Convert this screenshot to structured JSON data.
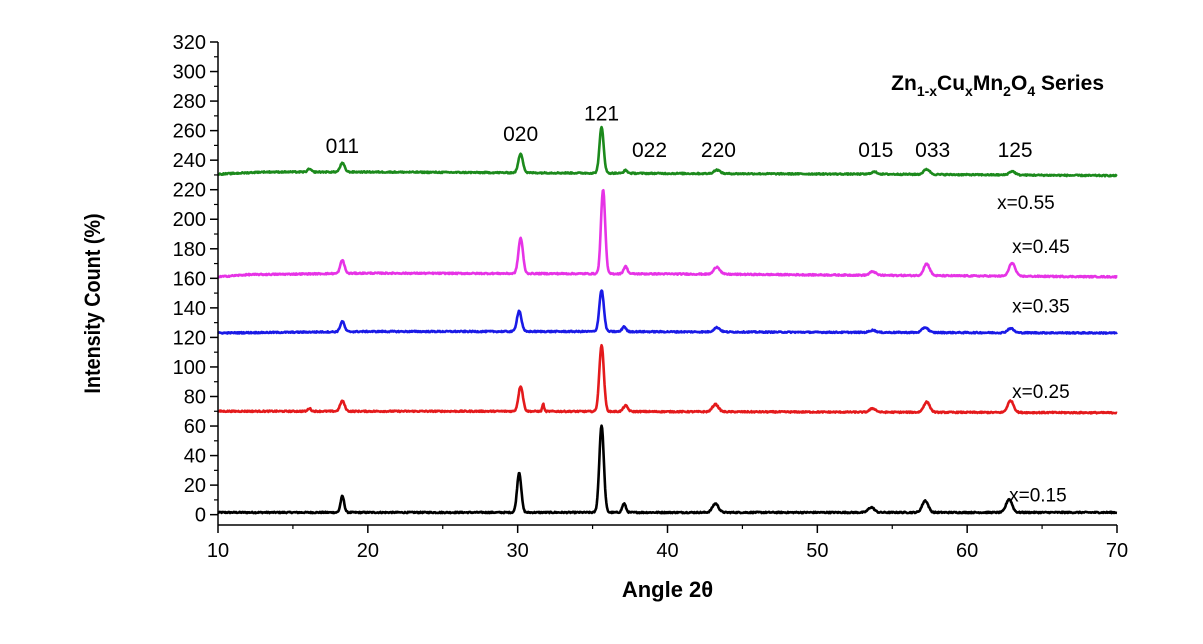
{
  "chart_data": {
    "type": "line",
    "title": {
      "parts": [
        {
          "text": "Zn",
          "sub": false
        },
        {
          "text": "1-x",
          "sub": true
        },
        {
          "text": "Cu",
          "sub": false
        },
        {
          "text": "x",
          "sub": true
        },
        {
          "text": "Mn",
          "sub": false
        },
        {
          "text": "2",
          "sub": true
        },
        {
          "text": "O",
          "sub": false
        },
        {
          "text": "4",
          "sub": true
        },
        {
          "text": " Series",
          "sub": false
        }
      ]
    },
    "xlabel": "Angle 2θ",
    "ylabel": "Intensity Count (%)",
    "xlim": [
      10,
      70
    ],
    "ylim": [
      -7,
      320
    ],
    "xticks": [
      10,
      20,
      30,
      40,
      50,
      60,
      70
    ],
    "yticks": [
      0,
      20,
      40,
      60,
      80,
      100,
      120,
      140,
      160,
      180,
      200,
      220,
      240,
      260,
      280,
      300,
      320
    ],
    "grid": false,
    "peak_labels": [
      {
        "text": "011",
        "x": 18.3,
        "y": 245
      },
      {
        "text": "020",
        "x": 30.2,
        "y": 253
      },
      {
        "text": "121",
        "x": 35.6,
        "y": 267
      },
      {
        "text": "022",
        "x": 38.8,
        "y": 242
      },
      {
        "text": "220",
        "x": 43.4,
        "y": 242
      },
      {
        "text": "015",
        "x": 53.9,
        "y": 242
      },
      {
        "text": "033",
        "x": 57.7,
        "y": 242
      },
      {
        "text": "125",
        "x": 63.2,
        "y": 242
      }
    ],
    "series": [
      {
        "name": "x=0.15",
        "color": "#000000",
        "label_pos": [
          62.8,
          9
        ],
        "baseline": [
          [
            10,
            1.5
          ],
          [
            70,
            1.5
          ]
        ],
        "peaks": [
          [
            18.3,
            11,
            0.12
          ],
          [
            30.1,
            27,
            0.14
          ],
          [
            35.6,
            59,
            0.15
          ],
          [
            37.1,
            6,
            0.12
          ],
          [
            43.2,
            6,
            0.2
          ],
          [
            53.6,
            3.5,
            0.2
          ],
          [
            57.2,
            8,
            0.2
          ],
          [
            62.8,
            9,
            0.2
          ]
        ]
      },
      {
        "name": "x=0.25",
        "color": "#e41a1c",
        "label_pos": [
          63.0,
          79
        ],
        "baseline": [
          [
            10,
            70
          ],
          [
            30,
            70
          ],
          [
            50,
            69.5
          ],
          [
            70,
            69
          ]
        ],
        "peaks": [
          [
            16.1,
            2,
            0.1
          ],
          [
            18.3,
            7,
            0.15
          ],
          [
            30.2,
            17,
            0.15
          ],
          [
            31.7,
            5,
            0.06
          ],
          [
            35.6,
            45,
            0.15
          ],
          [
            37.2,
            4,
            0.15
          ],
          [
            43.2,
            5,
            0.2
          ],
          [
            53.7,
            2.5,
            0.2
          ],
          [
            57.3,
            7,
            0.2
          ],
          [
            62.9,
            8,
            0.2
          ]
        ]
      },
      {
        "name": "x=0.35",
        "color": "#1a1ae6",
        "label_pos": [
          63.0,
          137
        ],
        "baseline": [
          [
            10,
            123
          ],
          [
            20,
            124
          ],
          [
            35,
            124
          ],
          [
            50,
            123.5
          ],
          [
            70,
            123
          ]
        ],
        "peaks": [
          [
            18.3,
            7,
            0.14
          ],
          [
            30.1,
            14,
            0.15
          ],
          [
            35.6,
            28,
            0.15
          ],
          [
            37.1,
            3.5,
            0.12
          ],
          [
            43.3,
            3,
            0.2
          ],
          [
            53.7,
            1.5,
            0.2
          ],
          [
            57.2,
            3.5,
            0.2
          ],
          [
            62.9,
            3,
            0.2
          ]
        ]
      },
      {
        "name": "x=0.45",
        "color": "#e633e6",
        "label_pos": [
          63.0,
          177
        ],
        "baseline": [
          [
            10,
            161
          ],
          [
            12,
            162.5
          ],
          [
            20,
            163.5
          ],
          [
            40,
            163
          ],
          [
            55,
            162
          ],
          [
            70,
            161
          ]
        ],
        "peaks": [
          [
            18.3,
            9,
            0.14
          ],
          [
            30.2,
            24,
            0.15
          ],
          [
            35.7,
            57,
            0.14
          ],
          [
            37.2,
            5,
            0.13
          ],
          [
            43.3,
            5,
            0.2
          ],
          [
            53.7,
            2.5,
            0.2
          ],
          [
            57.3,
            8,
            0.2
          ],
          [
            63.0,
            9,
            0.2
          ]
        ]
      },
      {
        "name": "x=0.55",
        "color": "#1c8a1c",
        "label_pos": [
          62.0,
          207
        ],
        "baseline": [
          [
            10,
            230.5
          ],
          [
            13,
            232
          ],
          [
            20,
            232
          ],
          [
            40,
            231
          ],
          [
            55,
            230.5
          ],
          [
            70,
            229.5
          ]
        ],
        "peaks": [
          [
            16.1,
            2,
            0.12
          ],
          [
            18.3,
            6,
            0.15
          ],
          [
            30.2,
            13,
            0.15
          ],
          [
            35.6,
            31,
            0.14
          ],
          [
            37.2,
            2,
            0.12
          ],
          [
            43.3,
            2.5,
            0.2
          ],
          [
            53.8,
            1.5,
            0.2
          ],
          [
            57.3,
            3.5,
            0.2
          ],
          [
            63.0,
            2.5,
            0.2
          ]
        ]
      }
    ]
  }
}
